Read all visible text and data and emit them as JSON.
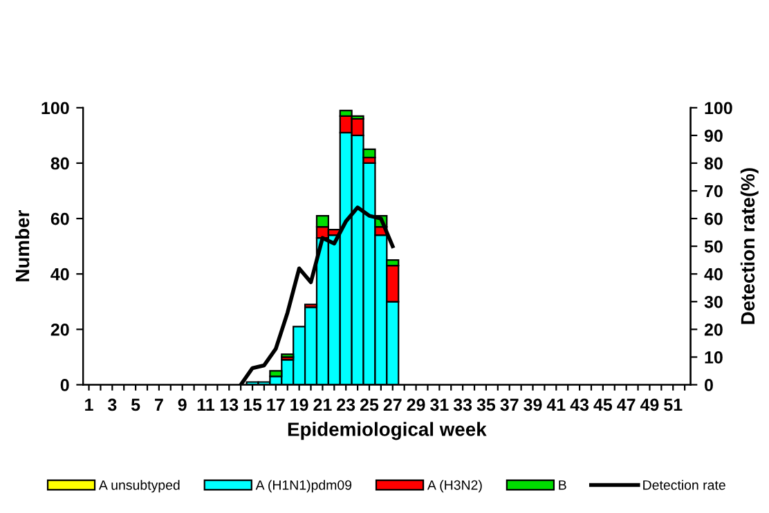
{
  "chart_data": {
    "type": "bar",
    "stacked": true,
    "xlabel": "Epidemiological week",
    "ylabel": "Number",
    "y2label": "Detection rate(%)",
    "categories": [
      "1",
      null,
      "3",
      null,
      "5",
      null,
      "7",
      null,
      "9",
      null,
      "11",
      null,
      "13",
      null,
      "15",
      null,
      "17",
      null,
      "19",
      null,
      "21",
      null,
      "23",
      null,
      "25",
      null,
      "27",
      null,
      "29",
      null,
      "31",
      null,
      "33",
      null,
      "35",
      null,
      "37",
      null,
      "39",
      null,
      "41",
      null,
      "43",
      null,
      "45",
      null,
      "47",
      null,
      "49",
      null,
      "51",
      null
    ],
    "ylim": [
      0,
      100
    ],
    "yticks": [
      0,
      20,
      40,
      60,
      80,
      100
    ],
    "y2lim": [
      0,
      100
    ],
    "y2ticks": [
      0,
      10,
      20,
      30,
      40,
      50,
      60,
      70,
      80,
      90,
      100
    ],
    "grid": false,
    "legend": "bottom",
    "series": [
      {
        "name": "A unsubtyped",
        "color": "#ffff00",
        "values": [
          null,
          null,
          null,
          null,
          null,
          null,
          null,
          null,
          null,
          null,
          null,
          null,
          null,
          null,
          null,
          null,
          null,
          null,
          null,
          null,
          null,
          null,
          null,
          null,
          null,
          null,
          null,
          null,
          null,
          null,
          null,
          null,
          null,
          null,
          null,
          null,
          null,
          null,
          null,
          null,
          null,
          null,
          null,
          null,
          null,
          null,
          null,
          null,
          null,
          null,
          null,
          null
        ]
      },
      {
        "name": "A (H1N1)pdm09",
        "color": "#00ffff",
        "values": [
          null,
          null,
          null,
          null,
          null,
          null,
          null,
          null,
          null,
          null,
          null,
          null,
          null,
          null,
          1,
          1,
          3,
          9,
          21,
          28,
          53,
          54,
          91,
          90,
          80,
          54,
          30,
          null,
          null,
          null,
          null,
          null,
          null,
          null,
          null,
          null,
          null,
          null,
          null,
          null,
          null,
          null,
          null,
          null,
          null,
          null,
          null,
          null,
          null,
          null,
          null,
          null
        ]
      },
      {
        "name": "A (H3N2)",
        "color": "#ff0000",
        "values": [
          null,
          null,
          null,
          null,
          null,
          null,
          null,
          null,
          null,
          null,
          null,
          null,
          null,
          null,
          null,
          null,
          null,
          1,
          null,
          1,
          4,
          2,
          6,
          6,
          2,
          3,
          13,
          null,
          null,
          null,
          null,
          null,
          null,
          null,
          null,
          null,
          null,
          null,
          null,
          null,
          null,
          null,
          null,
          null,
          null,
          null,
          null,
          null,
          null,
          null,
          null,
          null
        ]
      },
      {
        "name": "B",
        "color": "#00dd00",
        "values": [
          null,
          null,
          null,
          null,
          null,
          null,
          null,
          null,
          null,
          null,
          null,
          null,
          null,
          null,
          null,
          null,
          2,
          1,
          null,
          null,
          4,
          null,
          2,
          1,
          3,
          4,
          2,
          null,
          null,
          null,
          null,
          null,
          null,
          null,
          null,
          null,
          null,
          null,
          null,
          null,
          null,
          null,
          null,
          null,
          null,
          null,
          null,
          null,
          null,
          null,
          null,
          null
        ]
      },
      {
        "name": "Detection rate",
        "type": "line",
        "axis": "y2",
        "color": "#000000",
        "line_style": "solid",
        "marker": "none",
        "values": [
          null,
          null,
          null,
          null,
          null,
          null,
          null,
          null,
          null,
          null,
          null,
          null,
          null,
          0,
          6,
          7,
          13,
          26,
          42,
          37,
          53,
          51,
          59,
          64,
          61,
          60,
          50,
          null,
          null,
          null,
          null,
          null,
          null,
          null,
          null,
          null,
          null,
          null,
          null,
          null,
          null,
          null,
          null,
          null,
          null,
          null,
          null,
          null,
          null,
          null,
          null,
          null
        ]
      }
    ]
  }
}
